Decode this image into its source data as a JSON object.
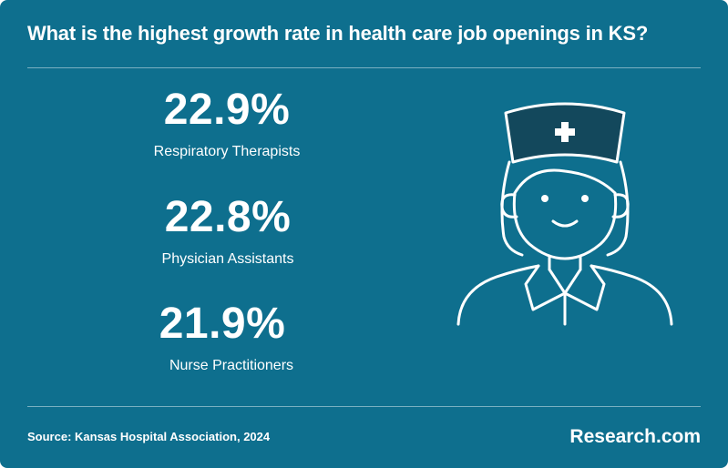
{
  "title": "What is the highest growth rate in health care job openings in KS?",
  "stats": [
    {
      "value": "22.9%",
      "label": "Respiratory Therapists"
    },
    {
      "value": "22.8%",
      "label": "Physician Assistants"
    },
    {
      "value": "21.9%",
      "label": "Nurse Practitioners"
    }
  ],
  "illustration": {
    "icon": "nurse-icon"
  },
  "footer": {
    "source": "Source: Kansas Hospital Association, 2024",
    "brand": "Research.com"
  },
  "colors": {
    "background": "#0e6f8e",
    "text": "#ffffff",
    "cap_dark": "#13485c"
  }
}
